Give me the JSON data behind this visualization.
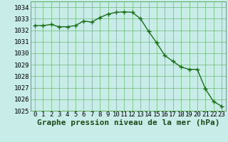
{
  "x": [
    0,
    1,
    2,
    3,
    4,
    5,
    6,
    7,
    8,
    9,
    10,
    11,
    12,
    13,
    14,
    15,
    16,
    17,
    18,
    19,
    20,
    21,
    22,
    23
  ],
  "y": [
    1032.4,
    1032.4,
    1032.5,
    1032.3,
    1032.3,
    1032.4,
    1032.8,
    1032.7,
    1033.1,
    1033.4,
    1033.55,
    1033.6,
    1033.55,
    1033.0,
    1031.9,
    1030.9,
    1029.8,
    1029.3,
    1028.8,
    1028.6,
    1028.6,
    1026.9,
    1025.8,
    1025.4
  ],
  "line_color": "#1a6e1a",
  "marker": "+",
  "marker_size": 4,
  "marker_color": "#1a6e1a",
  "background_color": "#c8ece8",
  "grid_color": "#5aaa5a",
  "xlabel": "Graphe pression niveau de la mer (hPa)",
  "xlabel_fontsize": 8,
  "xlabel_fontweight": "bold",
  "ylim": [
    1025,
    1034.5
  ],
  "xlim": [
    -0.5,
    23.5
  ],
  "yticks": [
    1025,
    1026,
    1027,
    1028,
    1029,
    1030,
    1031,
    1032,
    1033,
    1034
  ],
  "xticks": [
    0,
    1,
    2,
    3,
    4,
    5,
    6,
    7,
    8,
    9,
    10,
    11,
    12,
    13,
    14,
    15,
    16,
    17,
    18,
    19,
    20,
    21,
    22,
    23
  ],
  "tick_fontsize": 6.5,
  "line_width": 1.0,
  "font_family": "monospace"
}
